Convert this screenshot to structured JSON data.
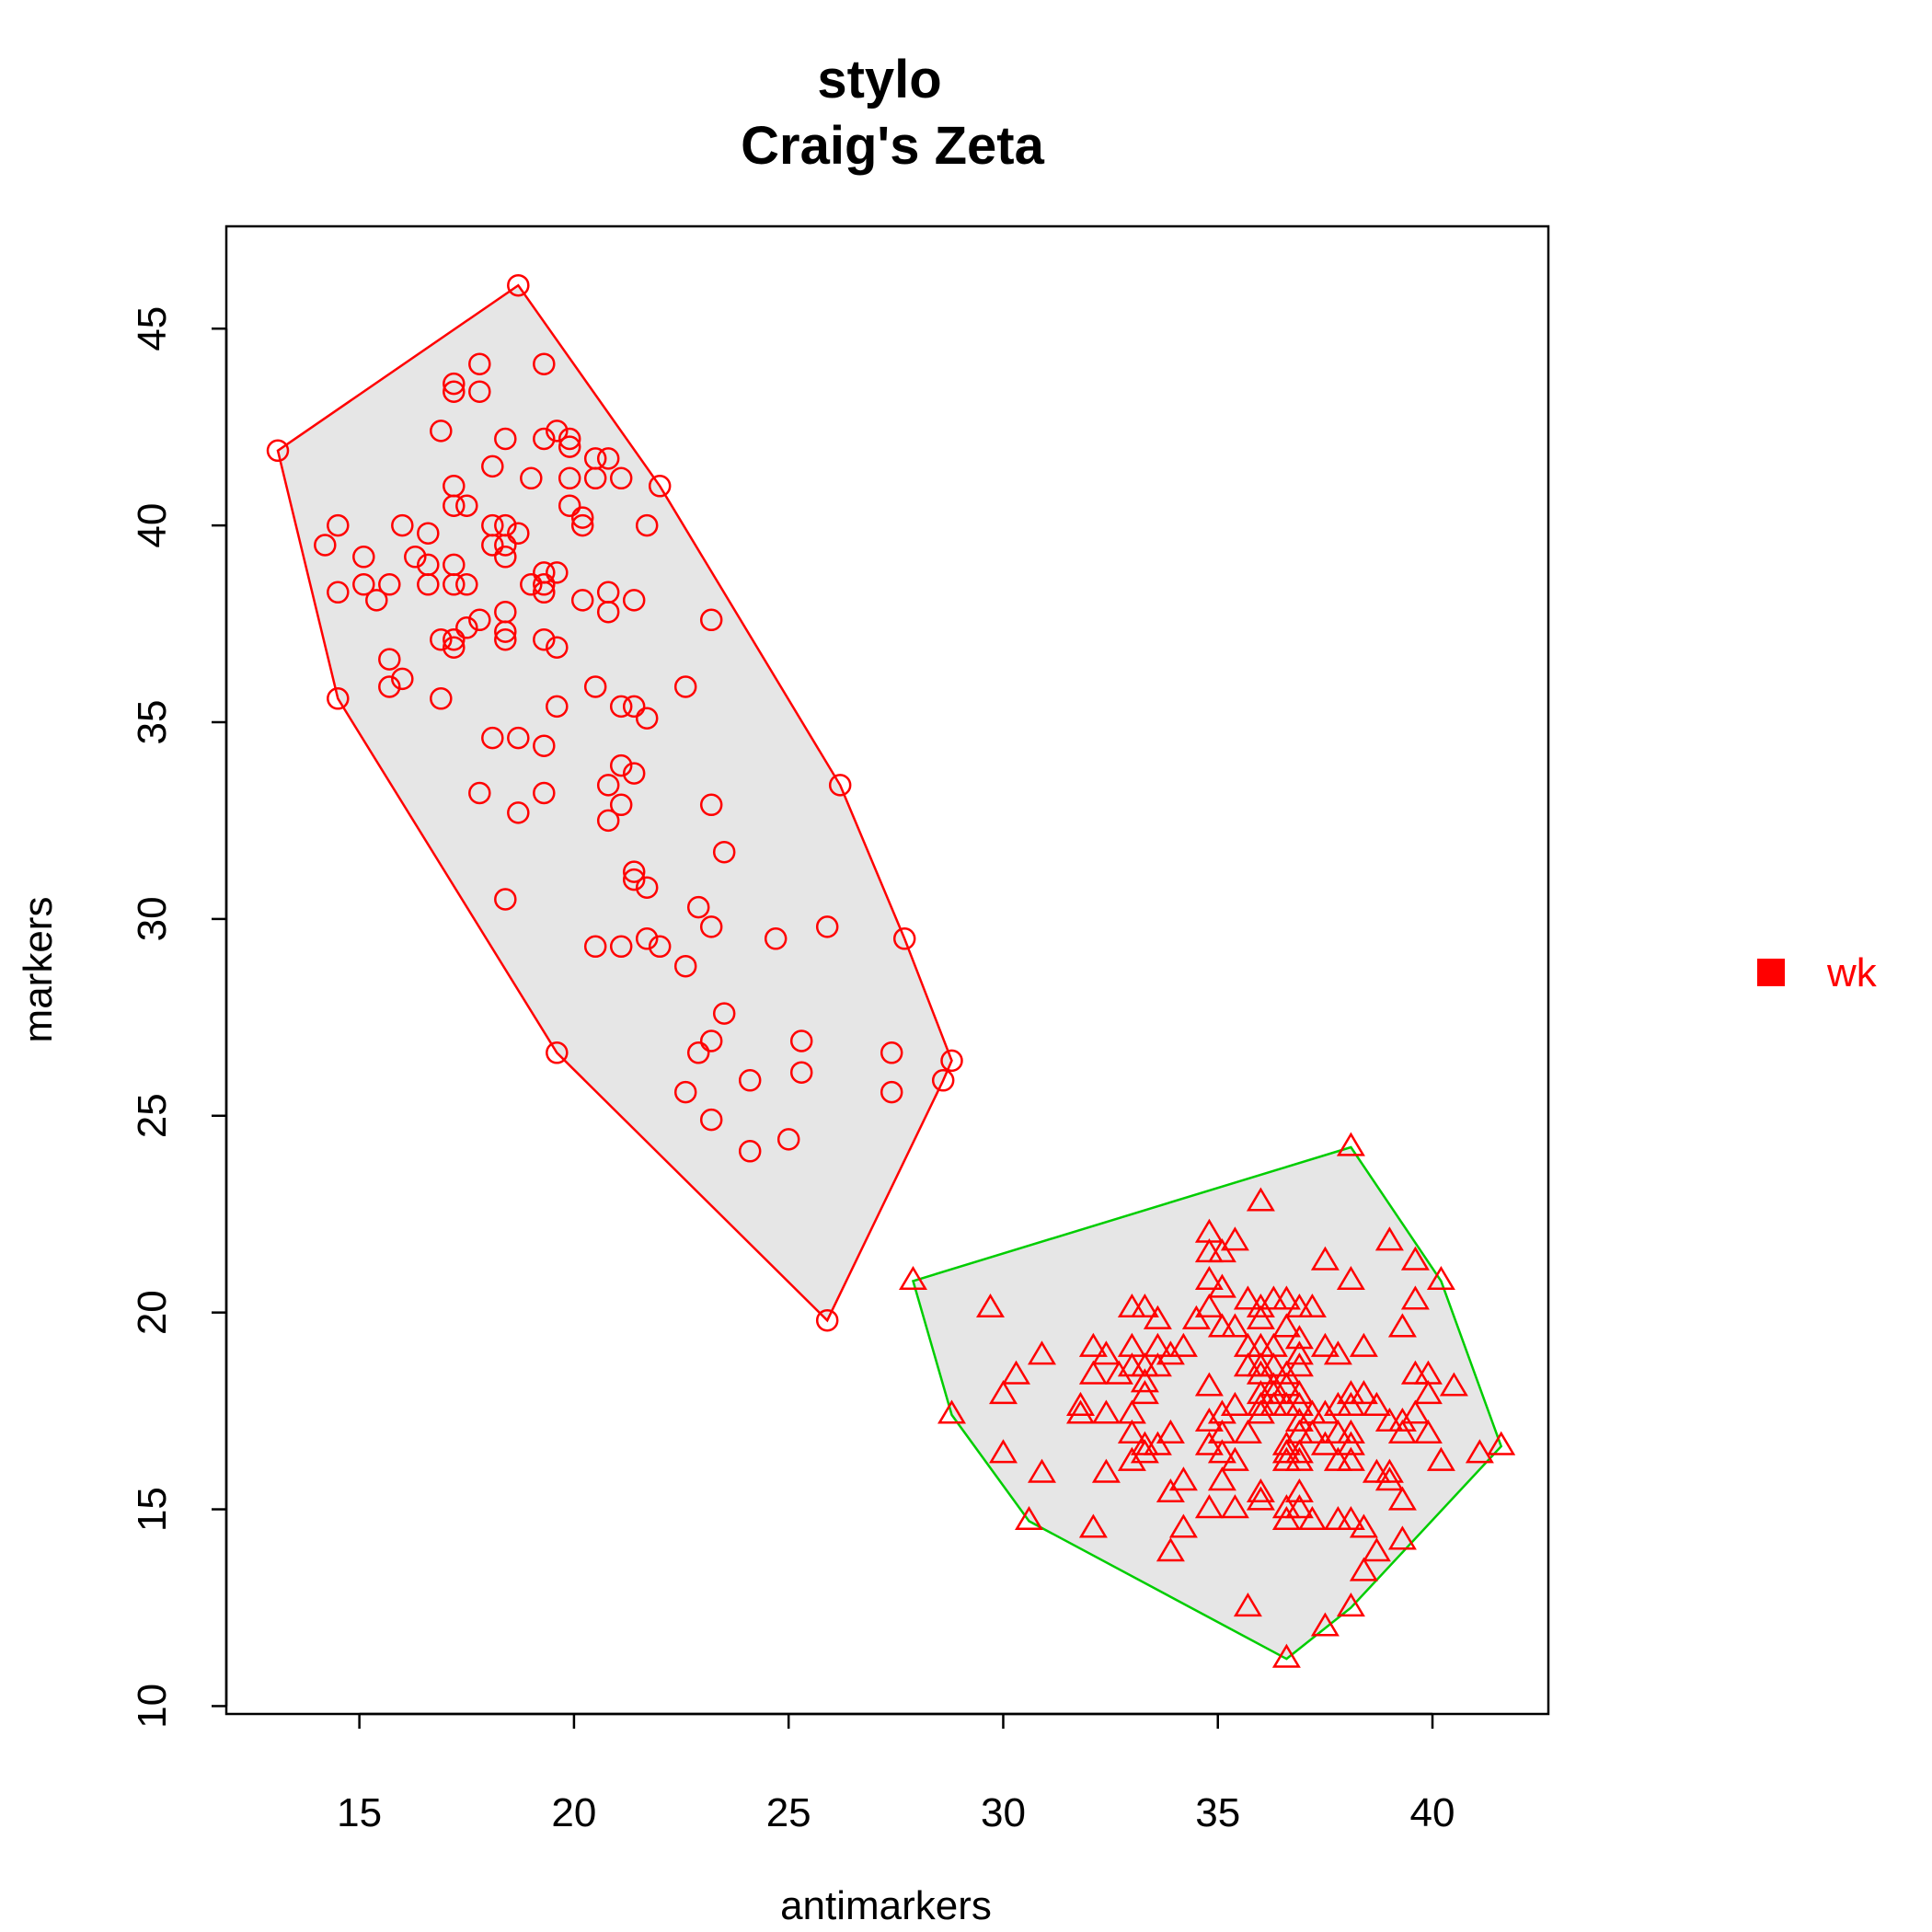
{
  "chart_data": {
    "type": "scatter",
    "title": "stylo",
    "subtitle": "Craig's Zeta",
    "xlabel": "antimarkers",
    "ylabel": "markers",
    "xlim": [
      11.9,
      42.7
    ],
    "ylim": [
      9.8,
      47.6
    ],
    "xticks": [
      15,
      20,
      25,
      30,
      35,
      40
    ],
    "yticks": [
      10,
      15,
      20,
      25,
      30,
      35,
      40,
      45
    ],
    "grid": false,
    "legend": {
      "position": "right",
      "entries": [
        {
          "label": "wk",
          "color": "#ff0000",
          "marker": "square"
        }
      ]
    },
    "hull_fill": "#e6e6e6",
    "series": [
      {
        "marker": "circle",
        "color": "#ff0000",
        "hull_color": "#ff0000",
        "points": [
          [
            13.1,
            41.9
          ],
          [
            18.7,
            46.1
          ],
          [
            14.2,
            39.5
          ],
          [
            14.5,
            40.0
          ],
          [
            14.5,
            38.3
          ],
          [
            15.1,
            39.2
          ],
          [
            15.1,
            38.5
          ],
          [
            15.4,
            38.1
          ],
          [
            15.7,
            38.5
          ],
          [
            15.7,
            36.6
          ],
          [
            15.7,
            35.9
          ],
          [
            16.0,
            40.0
          ],
          [
            16.0,
            36.1
          ],
          [
            16.3,
            39.2
          ],
          [
            16.6,
            39.8
          ],
          [
            16.6,
            39.0
          ],
          [
            16.6,
            38.5
          ],
          [
            16.9,
            42.4
          ],
          [
            16.9,
            37.1
          ],
          [
            16.9,
            35.6
          ],
          [
            17.2,
            43.6
          ],
          [
            17.2,
            43.4
          ],
          [
            17.2,
            41.0
          ],
          [
            17.2,
            40.5
          ],
          [
            17.2,
            39.0
          ],
          [
            17.2,
            38.5
          ],
          [
            17.2,
            37.1
          ],
          [
            17.2,
            36.9
          ],
          [
            17.5,
            40.5
          ],
          [
            17.5,
            38.5
          ],
          [
            17.5,
            37.4
          ],
          [
            17.8,
            44.1
          ],
          [
            17.8,
            43.4
          ],
          [
            17.8,
            37.6
          ],
          [
            17.8,
            33.2
          ],
          [
            18.1,
            41.5
          ],
          [
            18.1,
            40.0
          ],
          [
            18.1,
            39.5
          ],
          [
            18.1,
            34.6
          ],
          [
            18.4,
            42.2
          ],
          [
            18.4,
            40.0
          ],
          [
            18.4,
            39.5
          ],
          [
            18.4,
            39.2
          ],
          [
            18.4,
            37.8
          ],
          [
            18.4,
            37.3
          ],
          [
            18.4,
            37.1
          ],
          [
            18.4,
            30.5
          ],
          [
            18.7,
            39.8
          ],
          [
            18.7,
            34.6
          ],
          [
            18.7,
            32.7
          ],
          [
            19.0,
            41.2
          ],
          [
            19.0,
            38.5
          ],
          [
            19.3,
            44.1
          ],
          [
            19.3,
            42.2
          ],
          [
            19.3,
            38.8
          ],
          [
            19.3,
            38.5
          ],
          [
            19.3,
            38.3
          ],
          [
            19.3,
            37.1
          ],
          [
            19.3,
            34.4
          ],
          [
            19.3,
            33.2
          ],
          [
            19.6,
            42.4
          ],
          [
            19.6,
            38.8
          ],
          [
            19.6,
            36.9
          ],
          [
            19.6,
            35.4
          ],
          [
            19.9,
            42.2
          ],
          [
            19.9,
            42.0
          ],
          [
            19.9,
            41.2
          ],
          [
            19.9,
            40.5
          ],
          [
            20.2,
            40.2
          ],
          [
            20.2,
            40.0
          ],
          [
            20.2,
            38.1
          ],
          [
            20.5,
            41.7
          ],
          [
            20.5,
            41.2
          ],
          [
            20.5,
            35.9
          ],
          [
            20.5,
            29.3
          ],
          [
            20.8,
            41.7
          ],
          [
            20.8,
            38.3
          ],
          [
            20.8,
            37.8
          ],
          [
            20.8,
            33.4
          ],
          [
            20.8,
            32.5
          ],
          [
            21.1,
            41.2
          ],
          [
            21.1,
            35.4
          ],
          [
            21.1,
            33.9
          ],
          [
            21.1,
            32.9
          ],
          [
            21.1,
            29.3
          ],
          [
            21.4,
            38.1
          ],
          [
            21.4,
            35.4
          ],
          [
            21.4,
            33.7
          ],
          [
            21.4,
            31.2
          ],
          [
            21.4,
            31.0
          ],
          [
            21.7,
            40.0
          ],
          [
            21.7,
            35.1
          ],
          [
            21.7,
            30.8
          ],
          [
            21.7,
            29.5
          ],
          [
            22.0,
            41.0
          ],
          [
            22.0,
            29.3
          ],
          [
            22.6,
            35.9
          ],
          [
            22.6,
            28.8
          ],
          [
            22.6,
            25.6
          ],
          [
            22.9,
            30.3
          ],
          [
            22.9,
            26.6
          ],
          [
            23.2,
            37.6
          ],
          [
            23.2,
            32.9
          ],
          [
            23.2,
            29.8
          ],
          [
            23.2,
            26.9
          ],
          [
            23.2,
            24.9
          ],
          [
            23.5,
            31.7
          ],
          [
            23.5,
            27.6
          ],
          [
            24.1,
            25.9
          ],
          [
            24.1,
            24.1
          ],
          [
            24.7,
            29.5
          ],
          [
            25.0,
            24.4
          ],
          [
            25.3,
            26.9
          ],
          [
            25.3,
            26.1
          ],
          [
            25.9,
            29.8
          ],
          [
            25.9,
            19.8
          ],
          [
            26.2,
            33.4
          ],
          [
            27.4,
            26.6
          ],
          [
            27.4,
            25.6
          ],
          [
            27.7,
            29.5
          ],
          [
            28.6,
            25.9
          ],
          [
            28.8,
            26.4
          ],
          [
            19.6,
            26.6
          ],
          [
            14.5,
            35.6
          ]
        ]
      },
      {
        "marker": "triangle",
        "color": "#ff0000",
        "hull_color": "#00cd00",
        "points": [
          [
            27.9,
            20.8
          ],
          [
            28.8,
            17.4
          ],
          [
            29.7,
            20.1
          ],
          [
            30.0,
            17.9
          ],
          [
            30.0,
            16.4
          ],
          [
            30.3,
            18.4
          ],
          [
            30.6,
            14.7
          ],
          [
            30.9,
            18.9
          ],
          [
            30.9,
            15.9
          ],
          [
            31.8,
            17.6
          ],
          [
            31.8,
            17.4
          ],
          [
            32.1,
            19.1
          ],
          [
            32.1,
            18.4
          ],
          [
            32.1,
            14.5
          ],
          [
            32.4,
            18.9
          ],
          [
            32.4,
            17.4
          ],
          [
            32.4,
            15.9
          ],
          [
            32.7,
            18.4
          ],
          [
            33.0,
            20.1
          ],
          [
            33.0,
            19.1
          ],
          [
            33.0,
            18.6
          ],
          [
            33.0,
            17.4
          ],
          [
            33.0,
            16.9
          ],
          [
            33.0,
            16.2
          ],
          [
            33.3,
            20.1
          ],
          [
            33.3,
            18.6
          ],
          [
            33.3,
            18.2
          ],
          [
            33.3,
            17.9
          ],
          [
            33.3,
            16.6
          ],
          [
            33.3,
            16.4
          ],
          [
            33.6,
            19.8
          ],
          [
            33.6,
            19.1
          ],
          [
            33.6,
            18.6
          ],
          [
            33.6,
            16.6
          ],
          [
            33.9,
            18.9
          ],
          [
            33.9,
            16.9
          ],
          [
            33.9,
            15.4
          ],
          [
            33.9,
            13.9
          ],
          [
            34.2,
            19.1
          ],
          [
            34.2,
            15.7
          ],
          [
            34.2,
            14.5
          ],
          [
            34.5,
            19.8
          ],
          [
            34.8,
            22.0
          ],
          [
            34.8,
            21.5
          ],
          [
            34.8,
            20.8
          ],
          [
            34.8,
            20.1
          ],
          [
            34.8,
            18.1
          ],
          [
            34.8,
            17.2
          ],
          [
            34.8,
            16.6
          ],
          [
            34.8,
            15.0
          ],
          [
            35.1,
            21.5
          ],
          [
            35.1,
            20.6
          ],
          [
            35.1,
            19.6
          ],
          [
            35.1,
            17.4
          ],
          [
            35.1,
            16.9
          ],
          [
            35.1,
            16.4
          ],
          [
            35.1,
            15.7
          ],
          [
            35.4,
            21.8
          ],
          [
            35.4,
            19.6
          ],
          [
            35.4,
            17.6
          ],
          [
            35.4,
            16.2
          ],
          [
            35.4,
            15.0
          ],
          [
            35.7,
            20.3
          ],
          [
            35.7,
            19.1
          ],
          [
            35.7,
            18.6
          ],
          [
            35.7,
            16.9
          ],
          [
            35.7,
            12.5
          ],
          [
            36.0,
            22.8
          ],
          [
            36.0,
            20.1
          ],
          [
            36.0,
            19.8
          ],
          [
            36.0,
            19.1
          ],
          [
            36.0,
            18.6
          ],
          [
            36.0,
            18.4
          ],
          [
            36.0,
            17.9
          ],
          [
            36.0,
            17.6
          ],
          [
            36.0,
            17.4
          ],
          [
            36.0,
            15.4
          ],
          [
            36.0,
            15.2
          ],
          [
            36.3,
            20.3
          ],
          [
            36.3,
            19.1
          ],
          [
            36.3,
            18.6
          ],
          [
            36.3,
            18.1
          ],
          [
            36.3,
            17.9
          ],
          [
            36.3,
            17.6
          ],
          [
            36.6,
            20.3
          ],
          [
            36.6,
            19.6
          ],
          [
            36.6,
            18.4
          ],
          [
            36.6,
            18.1
          ],
          [
            36.6,
            17.6
          ],
          [
            36.6,
            16.6
          ],
          [
            36.6,
            16.4
          ],
          [
            36.6,
            16.2
          ],
          [
            36.6,
            15.0
          ],
          [
            36.6,
            14.7
          ],
          [
            36.6,
            11.2
          ],
          [
            36.9,
            20.1
          ],
          [
            36.9,
            19.3
          ],
          [
            36.9,
            18.9
          ],
          [
            36.9,
            18.6
          ],
          [
            36.9,
            17.9
          ],
          [
            36.9,
            17.6
          ],
          [
            36.9,
            17.2
          ],
          [
            36.9,
            16.9
          ],
          [
            36.9,
            16.4
          ],
          [
            36.9,
            16.2
          ],
          [
            36.9,
            15.4
          ],
          [
            36.9,
            15.0
          ],
          [
            37.2,
            20.1
          ],
          [
            37.2,
            17.4
          ],
          [
            37.2,
            16.9
          ],
          [
            37.2,
            14.7
          ],
          [
            37.5,
            21.3
          ],
          [
            37.5,
            19.1
          ],
          [
            37.5,
            17.4
          ],
          [
            37.5,
            16.6
          ],
          [
            37.5,
            12.0
          ],
          [
            37.8,
            18.9
          ],
          [
            37.8,
            17.6
          ],
          [
            37.8,
            16.9
          ],
          [
            37.8,
            16.2
          ],
          [
            37.8,
            14.7
          ],
          [
            38.1,
            24.2
          ],
          [
            38.1,
            20.8
          ],
          [
            38.1,
            17.9
          ],
          [
            38.1,
            17.6
          ],
          [
            38.1,
            16.9
          ],
          [
            38.1,
            16.6
          ],
          [
            38.1,
            16.2
          ],
          [
            38.1,
            14.7
          ],
          [
            38.1,
            12.5
          ],
          [
            38.4,
            19.1
          ],
          [
            38.4,
            17.9
          ],
          [
            38.4,
            14.5
          ],
          [
            38.4,
            13.4
          ],
          [
            38.7,
            17.6
          ],
          [
            38.7,
            15.9
          ],
          [
            38.7,
            13.9
          ],
          [
            39.0,
            21.8
          ],
          [
            39.0,
            17.2
          ],
          [
            39.0,
            15.9
          ],
          [
            39.0,
            15.7
          ],
          [
            39.3,
            19.6
          ],
          [
            39.3,
            17.2
          ],
          [
            39.3,
            16.9
          ],
          [
            39.3,
            15.2
          ],
          [
            39.3,
            14.2
          ],
          [
            39.6,
            21.3
          ],
          [
            39.6,
            20.3
          ],
          [
            39.6,
            18.4
          ],
          [
            39.6,
            17.4
          ],
          [
            39.9,
            18.4
          ],
          [
            39.9,
            17.9
          ],
          [
            39.9,
            16.9
          ],
          [
            40.2,
            20.8
          ],
          [
            40.2,
            16.2
          ],
          [
            40.5,
            18.1
          ],
          [
            41.1,
            16.4
          ],
          [
            41.6,
            16.6
          ]
        ]
      }
    ]
  }
}
